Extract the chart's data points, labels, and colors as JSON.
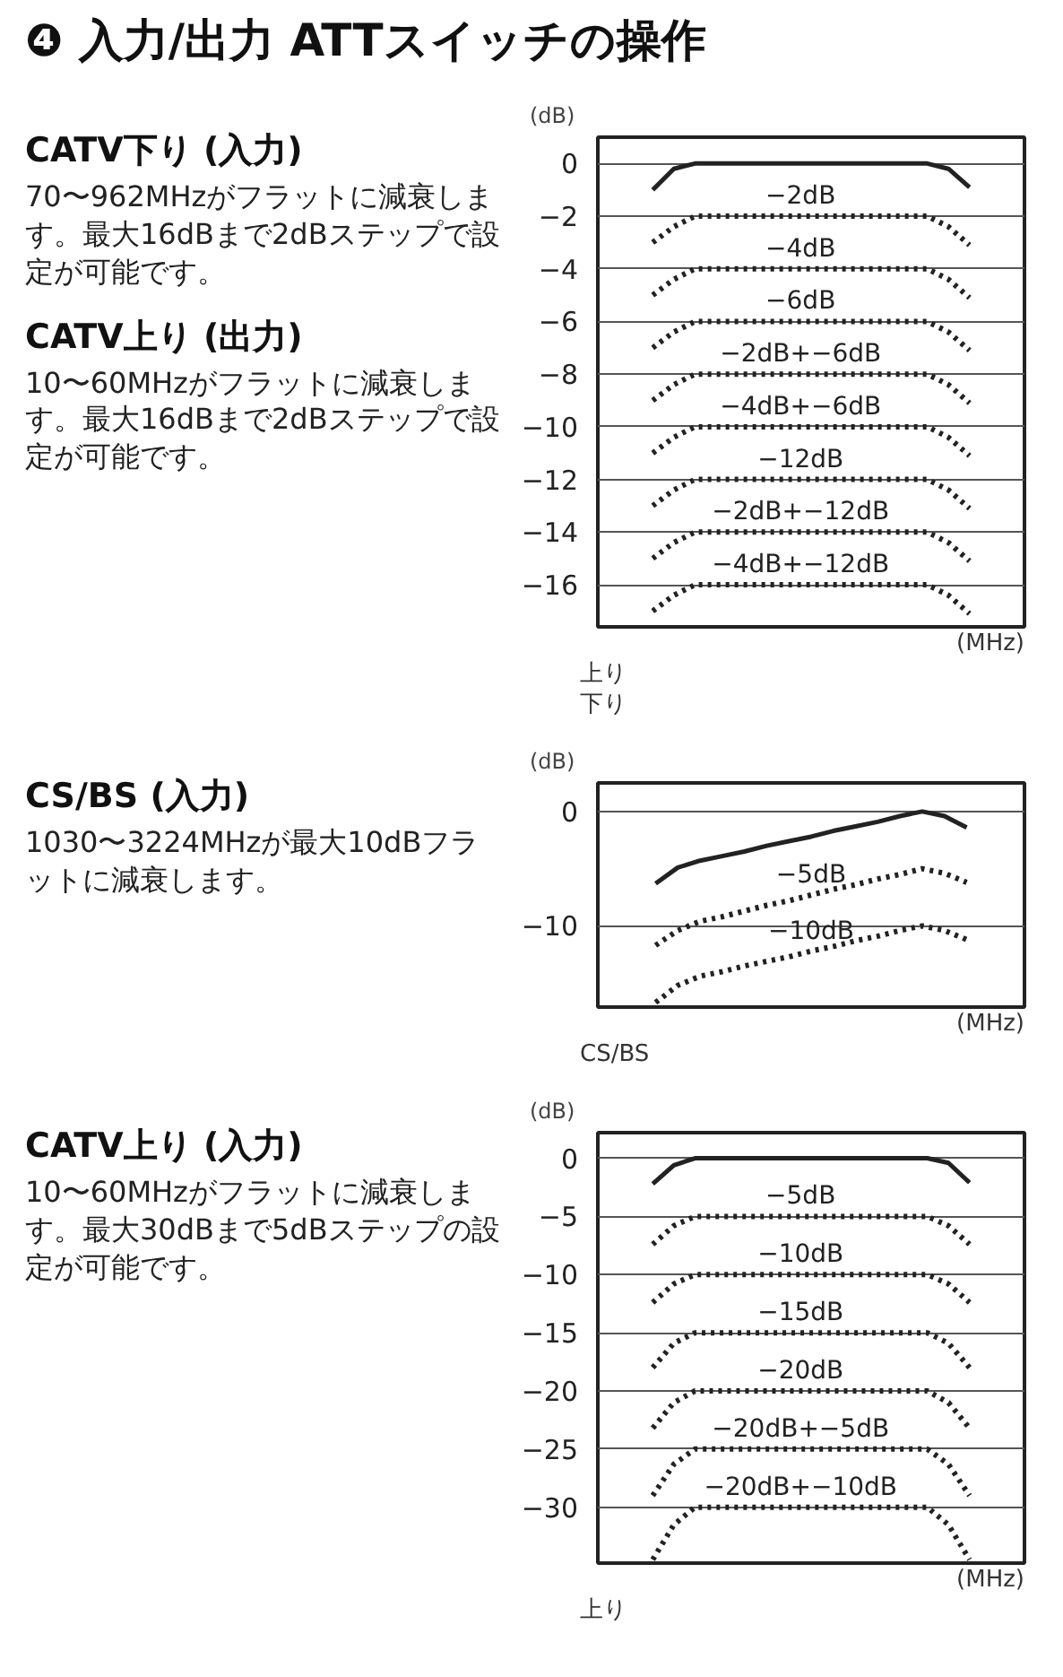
{
  "chart_data": [
    {
      "type": "other",
      "title": "❹ 入力/出力 ATTスイッチの操作"
    },
    {
      "type": "other",
      "title": "CATV下り (入力)",
      "annotations": [
        "70〜962MHzがフラットに減衰します。最大16dBまで2dBステップで設定が可能です。",
        "CATV上り (出力)",
        "10〜60MHzがフラットに減衰します。最大16dBまで2dBステップで設定が可能です。"
      ]
    },
    {
      "type": "line",
      "ylabel": "(dB)",
      "xlabel": "(MHz)",
      "categories": [
        null,
        null,
        null,
        null,
        null,
        null,
        null,
        null,
        null,
        null,
        null,
        null,
        null,
        null,
        null,
        null
      ],
      "ylim": [
        -17.6,
        1
      ],
      "yticks": [
        {
          "value": 0,
          "label": "0"
        },
        {
          "value": -2,
          "label": "−2"
        },
        {
          "value": -4,
          "label": "−4"
        },
        {
          "value": -6,
          "label": "−6"
        },
        {
          "value": -8,
          "label": "−8"
        },
        {
          "value": -10,
          "label": "−10"
        },
        {
          "value": -12,
          "label": "−12"
        },
        {
          "value": -14,
          "label": "−14"
        },
        {
          "value": -16,
          "label": "−16"
        }
      ],
      "tick_labels": "y",
      "grid": "y",
      "series": [
        {
          "color": "#222222",
          "line_style": "solid",
          "values": [
            -1,
            -0.2,
            0,
            0,
            0,
            0,
            0,
            0,
            0,
            0,
            0,
            0,
            0,
            0,
            -0.2,
            -0.9
          ]
        },
        {
          "name": "−2dB",
          "color": "#222222",
          "line_style": "dotted",
          "values": [
            -3,
            -2.4,
            -2,
            -2,
            -2,
            -2,
            -2,
            -2,
            -2,
            -2,
            -2,
            -2,
            -2,
            -2,
            -2.4,
            -3.1
          ]
        },
        {
          "name": "−4dB",
          "color": "#222222",
          "line_style": "dotted",
          "values": [
            -5,
            -4.4,
            -4,
            -4,
            -4,
            -4,
            -4,
            -4,
            -4,
            -4,
            -4,
            -4,
            -4,
            -4,
            -4.4,
            -5.1
          ]
        },
        {
          "name": "−6dB",
          "color": "#222222",
          "line_style": "dotted",
          "values": [
            -7,
            -6.4,
            -6,
            -6,
            -6,
            -6,
            -6,
            -6,
            -6,
            -6,
            -6,
            -6,
            -6,
            -6,
            -6.4,
            -7.1
          ]
        },
        {
          "name": "−2dB+−6dB",
          "color": "#222222",
          "line_style": "dotted",
          "values": [
            -9,
            -8.4,
            -8,
            -8,
            -8,
            -8,
            -8,
            -8,
            -8,
            -8,
            -8,
            -8,
            -8,
            -8,
            -8.4,
            -9.1
          ]
        },
        {
          "name": "−4dB+−6dB",
          "color": "#222222",
          "line_style": "dotted",
          "values": [
            -11,
            -10.4,
            -10,
            -10,
            -10,
            -10,
            -10,
            -10,
            -10,
            -10,
            -10,
            -10,
            -10,
            -10,
            -10.4,
            -11.1
          ]
        },
        {
          "name": "−12dB",
          "color": "#222222",
          "line_style": "dotted",
          "values": [
            -13,
            -12.4,
            -12,
            -12,
            -12,
            -12,
            -12,
            -12,
            -12,
            -12,
            -12,
            -12,
            -12,
            -12,
            -12.4,
            -13.1
          ]
        },
        {
          "name": "−2dB+−12dB",
          "color": "#222222",
          "line_style": "dotted",
          "values": [
            -15,
            -14.4,
            -14,
            -14,
            -14,
            -14,
            -14,
            -14,
            -14,
            -14,
            -14,
            -14,
            -14,
            -14,
            -14.4,
            -15.1
          ]
        },
        {
          "name": "−4dB+−12dB",
          "color": "#222222",
          "line_style": "dotted",
          "values": [
            -17,
            -16.4,
            -16,
            -16,
            -16,
            -16,
            -16,
            -16,
            -16,
            -16,
            -16,
            -16,
            -16,
            -16,
            -16.4,
            -17.1
          ]
        }
      ],
      "annotations": [
        "上り",
        "下り"
      ]
    },
    {
      "type": "other",
      "title": "CS/BS (入力)",
      "annotations": [
        "1030〜3224MHzが最大10dBフラットに減衰します。"
      ]
    },
    {
      "type": "line",
      "ylabel": "(dB)",
      "xlabel": "(MHz)",
      "categories": [
        null,
        null,
        null,
        null,
        null,
        null,
        null,
        null,
        null,
        null,
        null,
        null,
        null,
        null,
        null
      ],
      "ylim": [
        -17.1,
        2.5
      ],
      "yticks": [
        {
          "value": 0,
          "label": "0"
        },
        {
          "value": -10,
          "label": "−10"
        }
      ],
      "tick_labels": "y",
      "grid": "y",
      "series": [
        {
          "color": "#222222",
          "line_style": "solid",
          "values": [
            -6.3,
            -4.9,
            -4.3,
            -3.9,
            -3.5,
            -3,
            -2.6,
            -2.2,
            -1.7,
            -1.3,
            -0.9,
            -0.4,
            0,
            -0.4,
            -1.4
          ]
        },
        {
          "name": "−5dB",
          "color": "#222222",
          "line_style": "dotted",
          "values": [
            -11.7,
            -10.4,
            -9.6,
            -9.2,
            -8.7,
            -8.2,
            -7.8,
            -7.3,
            -6.8,
            -6.4,
            -5.9,
            -5.5,
            -5,
            -5.4,
            -6.2
          ]
        },
        {
          "name": "−10dB",
          "color": "#222222",
          "line_style": "dotted",
          "values": [
            -16.7,
            -15.2,
            -14.4,
            -14,
            -13.5,
            -13.1,
            -12.7,
            -12.2,
            -11.8,
            -11.3,
            -10.9,
            -10.4,
            -10,
            -10.4,
            -11.2
          ]
        }
      ],
      "annotations": [
        "CS/BS"
      ]
    },
    {
      "type": "other",
      "title": "CATV上り (入力)",
      "annotations": [
        "10〜60MHzがフラットに減衰します。最大30dBまで5dBステップの設定が可能です。"
      ]
    },
    {
      "type": "line",
      "ylabel": "(dB)",
      "xlabel": "(MHz)",
      "categories": [
        null,
        null,
        null,
        null,
        null,
        null,
        null,
        null,
        null,
        null,
        null,
        null,
        null,
        null,
        null,
        null
      ],
      "ylim": [
        -34.8,
        2.2
      ],
      "yticks": [
        {
          "value": 0,
          "label": "0"
        },
        {
          "value": -5,
          "label": "−5"
        },
        {
          "value": -10,
          "label": "−10"
        },
        {
          "value": -15,
          "label": "−15"
        },
        {
          "value": -20,
          "label": "−20"
        },
        {
          "value": -25,
          "label": "−25"
        },
        {
          "value": -30,
          "label": "−30"
        }
      ],
      "tick_labels": "y",
      "grid": "y",
      "series": [
        {
          "color": "#222222",
          "line_style": "solid",
          "values": [
            -2.2,
            -0.6,
            0,
            0,
            0,
            0,
            0,
            0,
            0,
            0,
            0,
            0,
            0,
            0,
            -0.4,
            -2.1
          ]
        },
        {
          "name": "−5dB",
          "color": "#222222",
          "line_style": "dotted",
          "values": [
            -7.4,
            -5.8,
            -5,
            -5,
            -5,
            -5,
            -5,
            -5,
            -5,
            -5,
            -5,
            -5,
            -5,
            -5,
            -5.8,
            -7.4
          ]
        },
        {
          "name": "−10dB",
          "color": "#222222",
          "line_style": "dotted",
          "values": [
            -12.4,
            -10.8,
            -10,
            -10,
            -10,
            -10,
            -10,
            -10,
            -10,
            -10,
            -10,
            -10,
            -10,
            -10,
            -10.8,
            -12.4
          ]
        },
        {
          "name": "−15dB",
          "color": "#222222",
          "line_style": "dotted",
          "values": [
            -18,
            -15.9,
            -15,
            -15,
            -15,
            -15,
            -15,
            -15,
            -15,
            -15,
            -15,
            -15,
            -15,
            -15,
            -15.9,
            -18
          ]
        },
        {
          "name": "−20dB",
          "color": "#222222",
          "line_style": "dotted",
          "values": [
            -23.2,
            -21,
            -20,
            -20,
            -20,
            -20,
            -20,
            -20,
            -20,
            -20,
            -20,
            -20,
            -20,
            -20,
            -21,
            -23.2
          ]
        },
        {
          "name": "−20dB+−5dB",
          "color": "#222222",
          "line_style": "dotted",
          "values": [
            -29,
            -26.3,
            -25,
            -25,
            -25,
            -25,
            -25,
            -25,
            -25,
            -25,
            -25,
            -25,
            -25,
            -25,
            -26.3,
            -29
          ]
        },
        {
          "name": "−20dB+−10dB",
          "color": "#222222",
          "line_style": "dotted",
          "values": [
            -34.5,
            -31.5,
            -30,
            -30,
            -30,
            -30,
            -30,
            -30,
            -30,
            -30,
            -30,
            -30,
            -30,
            -30,
            -31.5,
            -34.5
          ]
        }
      ],
      "annotations": [
        "上り"
      ]
    }
  ]
}
